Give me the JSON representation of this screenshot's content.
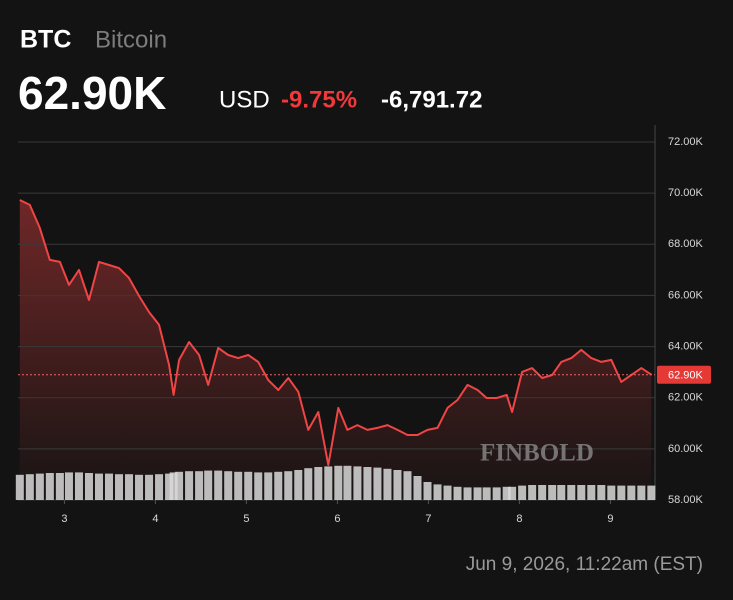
{
  "header": {
    "symbol": "BTC",
    "name": "Bitcoin",
    "price": "62.90K",
    "currency": "USD",
    "change_pct": "-9.75%",
    "change": "-6,791.72",
    "timestamp": "Jun 9, 2026, 11:22am (EST)",
    "watermark": "FINBOLD"
  },
  "chart_data": {
    "type": "line",
    "x": [
      2.51,
      2.62,
      2.73,
      2.84,
      2.95,
      3.05,
      3.16,
      3.27,
      3.38,
      3.49,
      3.6,
      3.71,
      3.82,
      3.93,
      4.04,
      4.15,
      4.2,
      4.26,
      4.37,
      4.48,
      4.58,
      4.69,
      4.8,
      4.91,
      5.02,
      5.13,
      5.24,
      5.35,
      5.46,
      5.57,
      5.68,
      5.79,
      5.9,
      6.01,
      6.11,
      6.22,
      6.33,
      6.44,
      6.55,
      6.66,
      6.77,
      6.88,
      6.99,
      7.1,
      7.21,
      7.32,
      7.43,
      7.54,
      7.64,
      7.75,
      7.86,
      7.92,
      8.03,
      8.14,
      8.25,
      8.36,
      8.46,
      8.57,
      8.68,
      8.79,
      8.9,
      9.01,
      9.12,
      9.23,
      9.34,
      9.45
    ],
    "series": [
      {
        "name": "BTC",
        "color": "#f04545",
        "values": [
          69730,
          69540,
          68640,
          67390,
          67310,
          66410,
          67000,
          65820,
          67310,
          67190,
          67070,
          66680,
          65980,
          65350,
          64850,
          63280,
          62110,
          63480,
          64180,
          63670,
          62500,
          63950,
          63670,
          63550,
          63670,
          63400,
          62690,
          62300,
          62770,
          62230,
          60740,
          61440,
          59370,
          61600,
          60740,
          60930,
          60740,
          60820,
          60930,
          60740,
          60540,
          60540,
          60740,
          60820,
          61600,
          61910,
          62500,
          62300,
          61990,
          61990,
          62110,
          61440,
          63010,
          63160,
          62770,
          62890,
          63400,
          63550,
          63870,
          63550,
          63400,
          63480,
          62620,
          62890,
          63160,
          62900
        ]
      },
      {
        "name": "Volume",
        "color": "#d9d9d9",
        "axis": "y2",
        "values": [
          42,
          43,
          44,
          45,
          45,
          46,
          46,
          45,
          44,
          44,
          43,
          43,
          42,
          42,
          43,
          44,
          46,
          47,
          48,
          48,
          49,
          49,
          48,
          47,
          47,
          46,
          46,
          47,
          48,
          50,
          53,
          55,
          56,
          57,
          57,
          56,
          55,
          54,
          52,
          50,
          48,
          40,
          30,
          26,
          24,
          22,
          21,
          21,
          21,
          21,
          22,
          22,
          24,
          25,
          25,
          25,
          25,
          25,
          25,
          25,
          25,
          24,
          24,
          24,
          24,
          24
        ]
      }
    ],
    "xlim": [
      2.49,
      9.49
    ],
    "xticks": [
      3,
      4,
      5,
      6,
      7,
      8,
      9
    ],
    "ylim": [
      58000,
      72000
    ],
    "yticks": [
      {
        "value": 58000,
        "label": "58.00K"
      },
      {
        "value": 60000,
        "label": "60.00K"
      },
      {
        "value": 62000,
        "label": "62.00K"
      },
      {
        "value": 64000,
        "label": "64.00K"
      },
      {
        "value": 66000,
        "label": "66.00K"
      },
      {
        "value": 68000,
        "label": "68.00K"
      },
      {
        "value": 70000,
        "label": "70.00K"
      },
      {
        "value": 72000,
        "label": "72.00K"
      }
    ],
    "y2lim": [
      0,
      100
    ],
    "price_marker": {
      "value": 62900,
      "label": "62.90K"
    },
    "grid": true
  }
}
